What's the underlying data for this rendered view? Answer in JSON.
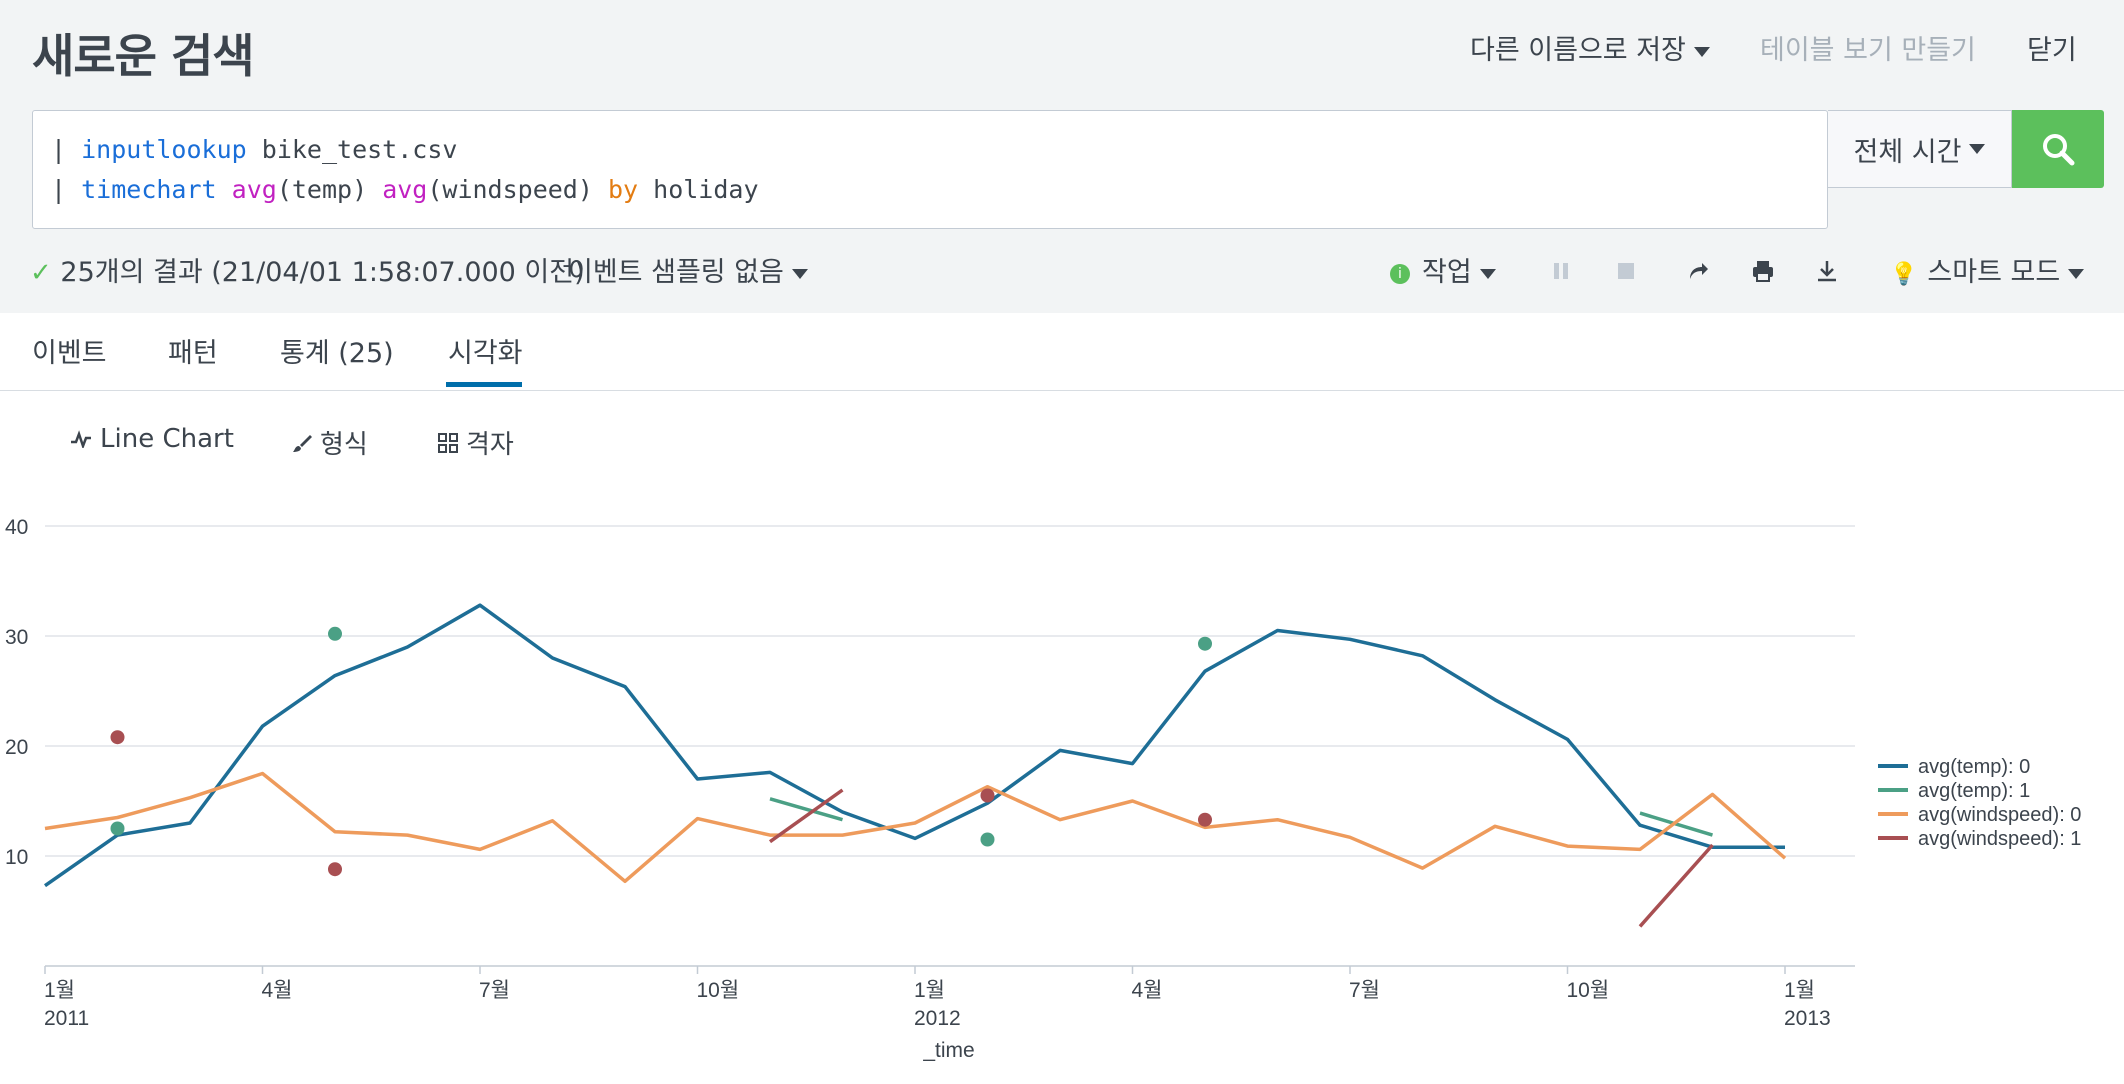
{
  "header": {
    "title": "새로운 검색",
    "save_as": "다른 이름으로 저장",
    "create_table_view": "테이블 보기 만들기",
    "close": "닫기"
  },
  "search": {
    "line1": {
      "pipe": "|",
      "command": "inputlookup",
      "arg": "bike_test.csv"
    },
    "line2": {
      "pipe": "|",
      "command": "timechart",
      "fn1": "avg",
      "arg1": "(temp)",
      "fn2": "avg",
      "arg2": "(windspeed)",
      "by": "by",
      "field": "holiday"
    },
    "time_range": "전체 시간"
  },
  "status": {
    "results": "25개의 결과 (21/04/01 1:58:07.000 이전)",
    "sampling": "이벤트 샘플링 없음",
    "job": "작업",
    "mode": "스마트 모드"
  },
  "tabs": [
    {
      "label": "이벤트"
    },
    {
      "label": "패턴"
    },
    {
      "label": "통계 (25)"
    },
    {
      "label": "시각화"
    }
  ],
  "viz_toolbar": {
    "chart_type": "Line Chart",
    "format": "형식",
    "trellis": "격자"
  },
  "chart_data": {
    "type": "line",
    "xlabel": "_time",
    "x": [
      "2011-01",
      "2011-02",
      "2011-03",
      "2011-04",
      "2011-05",
      "2011-06",
      "2011-07",
      "2011-08",
      "2011-09",
      "2011-10",
      "2011-11",
      "2011-12",
      "2012-01",
      "2012-02",
      "2012-03",
      "2012-04",
      "2012-05",
      "2012-06",
      "2012-07",
      "2012-08",
      "2012-09",
      "2012-10",
      "2012-11",
      "2012-12",
      "2013-01"
    ],
    "x_ticks": [
      {
        "x": "2011-01",
        "label": "1월",
        "sub": "2011"
      },
      {
        "x": "2011-04",
        "label": "4월",
        "sub": ""
      },
      {
        "x": "2011-07",
        "label": "7월",
        "sub": ""
      },
      {
        "x": "2011-10",
        "label": "10월",
        "sub": ""
      },
      {
        "x": "2012-01",
        "label": "1월",
        "sub": "2012"
      },
      {
        "x": "2012-04",
        "label": "4월",
        "sub": ""
      },
      {
        "x": "2012-07",
        "label": "7월",
        "sub": ""
      },
      {
        "x": "2012-10",
        "label": "10월",
        "sub": ""
      },
      {
        "x": "2013-01",
        "label": "1월",
        "sub": "2013"
      }
    ],
    "y_ticks": [
      10,
      20,
      30,
      40
    ],
    "ylim": [
      0,
      40
    ],
    "grid": true,
    "legend_position": "right",
    "series": [
      {
        "name": "avg(temp): 0",
        "color": "#1e6e96",
        "values": [
          7.3,
          11.9,
          13.0,
          21.8,
          26.4,
          29.0,
          32.8,
          28.0,
          25.4,
          17.0,
          17.6,
          14.0,
          11.6,
          14.8,
          19.6,
          18.4,
          26.8,
          30.5,
          29.7,
          28.2,
          24.2,
          20.6,
          12.8,
          10.8,
          10.8
        ]
      },
      {
        "name": "avg(temp): 1",
        "color": "#4ba085",
        "values": [
          null,
          12.5,
          null,
          null,
          30.2,
          null,
          null,
          null,
          null,
          null,
          15.2,
          13.3,
          null,
          11.5,
          null,
          null,
          29.3,
          null,
          null,
          null,
          null,
          null,
          13.9,
          11.9,
          null
        ]
      },
      {
        "name": "avg(windspeed): 0",
        "color": "#ee9b5c",
        "values": [
          12.5,
          13.5,
          15.3,
          17.5,
          12.2,
          11.9,
          10.6,
          13.2,
          7.7,
          13.4,
          11.9,
          11.9,
          13.0,
          16.3,
          13.3,
          15.0,
          12.6,
          13.3,
          11.7,
          8.9,
          12.7,
          10.9,
          10.6,
          15.6,
          9.8
        ]
      },
      {
        "name": "avg(windspeed): 1",
        "color": "#a84f52",
        "values": [
          null,
          20.8,
          null,
          null,
          8.8,
          null,
          null,
          null,
          null,
          null,
          11.3,
          16.0,
          null,
          15.5,
          null,
          null,
          13.3,
          null,
          null,
          null,
          null,
          null,
          3.6,
          11.0,
          null
        ]
      }
    ]
  }
}
